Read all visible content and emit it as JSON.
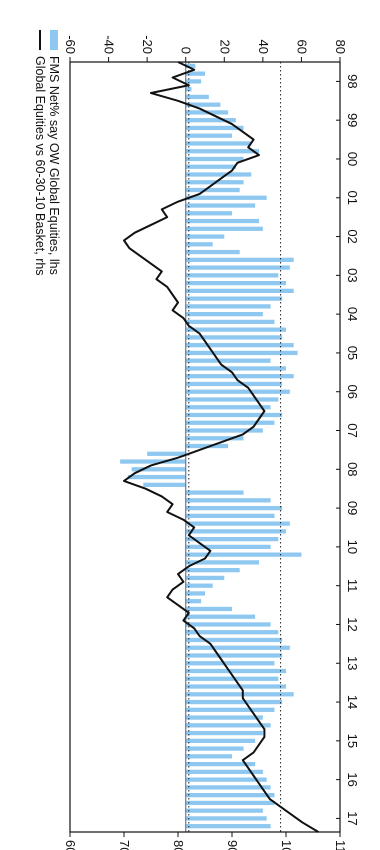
{
  "chart_data": {
    "type": "bar",
    "orientation": "rotated-90-clockwise",
    "title": "",
    "x": {
      "label": "",
      "ticks": [
        "98",
        "99",
        "00",
        "01",
        "02",
        "03",
        "04",
        "05",
        "06",
        "07",
        "08",
        "09",
        "10",
        "11",
        "12",
        "13",
        "14",
        "15",
        "16",
        "17"
      ],
      "range": [
        1998.0,
        2017.85
      ]
    },
    "y_left": {
      "label": "",
      "ticks": [
        -60,
        -40,
        -20,
        0,
        20,
        40,
        60,
        80
      ],
      "range": [
        -60,
        80
      ]
    },
    "y_right": {
      "label": "",
      "ticks": [
        60,
        70,
        80,
        90,
        100,
        110
      ],
      "range": [
        60,
        110
      ]
    },
    "reference_lines": [
      {
        "axis": "right",
        "value": 82,
        "style": "dotted"
      },
      {
        "axis": "right",
        "value": 99,
        "style": "dotted"
      }
    ],
    "legend": {
      "placement": "bottom-right",
      "entries": [
        {
          "name": "FMS Net% say OW Global Equities, lhs",
          "symbol": "bars",
          "color": "#8ec8f0"
        },
        {
          "name": "Global Equities vs 60-30-10 Basket, rhs",
          "symbol": "line",
          "color": "#111111"
        }
      ]
    },
    "series": [
      {
        "name": "FMS Net% say OW Global Equities, lhs",
        "type": "bar",
        "axis": "left",
        "color": "#8ec8f0",
        "x": [
          1998.1,
          1998.3,
          1998.5,
          1998.7,
          1998.9,
          1999.1,
          1999.3,
          1999.5,
          1999.7,
          1999.9,
          2000.1,
          2000.3,
          2000.5,
          2000.7,
          2000.9,
          2001.1,
          2001.3,
          2001.5,
          2001.7,
          2001.9,
          2002.1,
          2002.3,
          2002.5,
          2002.7,
          2002.9,
          2003.1,
          2003.3,
          2003.5,
          2003.7,
          2003.9,
          2004.1,
          2004.3,
          2004.5,
          2004.7,
          2004.9,
          2005.1,
          2005.3,
          2005.5,
          2005.7,
          2005.9,
          2006.1,
          2006.3,
          2006.5,
          2006.7,
          2006.9,
          2007.1,
          2007.3,
          2007.5,
          2007.7,
          2007.9,
          2008.1,
          2008.3,
          2008.5,
          2008.7,
          2008.9,
          2009.1,
          2009.3,
          2009.5,
          2009.7,
          2009.9,
          2010.1,
          2010.3,
          2010.5,
          2010.7,
          2010.9,
          2011.1,
          2011.3,
          2011.5,
          2011.7,
          2011.9,
          2012.1,
          2012.3,
          2012.5,
          2012.7,
          2012.9,
          2013.1,
          2013.3,
          2013.5,
          2013.7,
          2013.9,
          2014.1,
          2014.3,
          2014.5,
          2014.7,
          2014.9,
          2015.1,
          2015.3,
          2015.5,
          2015.7,
          2015.9,
          2016.1,
          2016.3,
          2016.5,
          2016.7,
          2016.9,
          2017.1,
          2017.3,
          2017.5,
          2017.7
        ],
        "values": [
          5,
          10,
          8,
          3,
          12,
          18,
          22,
          26,
          30,
          24,
          34,
          38,
          30,
          26,
          34,
          30,
          28,
          42,
          36,
          24,
          38,
          40,
          20,
          14,
          28,
          56,
          54,
          48,
          52,
          56,
          50,
          44,
          40,
          46,
          52,
          50,
          56,
          58,
          44,
          52,
          56,
          50,
          54,
          48,
          44,
          50,
          46,
          40,
          30,
          22,
          -20,
          -34,
          -28,
          -30,
          -22,
          30,
          44,
          50,
          46,
          54,
          52,
          48,
          44,
          60,
          38,
          28,
          20,
          14,
          10,
          8,
          24,
          36,
          44,
          48,
          50,
          54,
          50,
          46,
          52,
          48,
          52,
          56,
          50,
          46,
          40,
          44,
          40,
          36,
          30,
          24,
          36,
          40,
          42,
          44,
          46,
          46,
          40,
          42,
          44
        ]
      },
      {
        "name": "Global Equities vs 60-30-10 Basket, rhs",
        "type": "line",
        "axis": "right",
        "color": "#111111",
        "x": [
          1998.0,
          1998.2,
          1998.4,
          1998.6,
          1998.8,
          1999.0,
          1999.2,
          1999.4,
          1999.6,
          1999.8,
          2000.0,
          2000.2,
          2000.4,
          2000.6,
          2000.8,
          2001.0,
          2001.2,
          2001.4,
          2001.6,
          2001.8,
          2002.0,
          2002.2,
          2002.4,
          2002.6,
          2002.8,
          2003.0,
          2003.2,
          2003.4,
          2003.6,
          2003.8,
          2004.0,
          2004.2,
          2004.4,
          2004.6,
          2004.8,
          2005.0,
          2005.2,
          2005.4,
          2005.6,
          2005.8,
          2006.0,
          2006.2,
          2006.4,
          2006.6,
          2006.8,
          2007.0,
          2007.2,
          2007.4,
          2007.6,
          2007.8,
          2008.0,
          2008.2,
          2008.4,
          2008.6,
          2008.8,
          2009.0,
          2009.2,
          2009.4,
          2009.6,
          2009.8,
          2010.0,
          2010.2,
          2010.4,
          2010.6,
          2010.8,
          2011.0,
          2011.2,
          2011.4,
          2011.6,
          2011.8,
          2012.0,
          2012.2,
          2012.4,
          2012.6,
          2012.8,
          2013.0,
          2013.2,
          2013.4,
          2013.6,
          2013.8,
          2014.0,
          2014.2,
          2014.4,
          2014.6,
          2014.8,
          2015.0,
          2015.2,
          2015.4,
          2015.6,
          2015.8,
          2016.0,
          2016.2,
          2016.4,
          2016.6,
          2016.8,
          2017.0,
          2017.2,
          2017.4,
          2017.6,
          2017.85
        ],
        "values": [
          80,
          83,
          79,
          82,
          75,
          80,
          84,
          87,
          90,
          92,
          94,
          93,
          95,
          91,
          90,
          88,
          86,
          84,
          80,
          77,
          78,
          75,
          72,
          70,
          71,
          73,
          75,
          77,
          76,
          78,
          79,
          80,
          79,
          81,
          82,
          84,
          85,
          86,
          87,
          88,
          90,
          91,
          93,
          94,
          95,
          96,
          95,
          94,
          92,
          88,
          84,
          80,
          75,
          72,
          70,
          74,
          77,
          79,
          78,
          81,
          83,
          82,
          84,
          86,
          85,
          82,
          80,
          81,
          79,
          78,
          80,
          82,
          81,
          83,
          84,
          86,
          87,
          88,
          89,
          90,
          91,
          92,
          92,
          93,
          94,
          95,
          96,
          96,
          95,
          94,
          92,
          93,
          94,
          95,
          96,
          97,
          99,
          101,
          103,
          106
        ]
      }
    ],
    "grid": false
  }
}
